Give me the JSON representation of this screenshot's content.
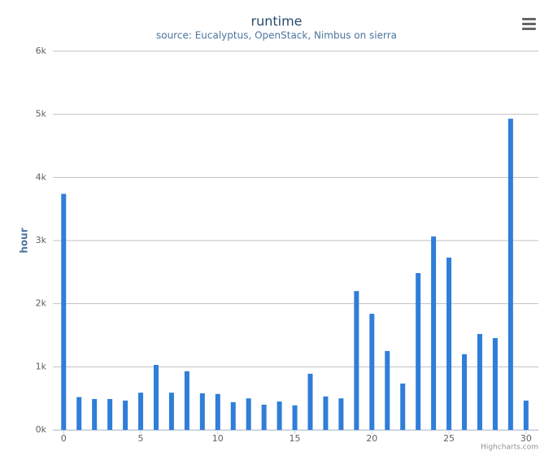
{
  "chart_data": {
    "type": "bar",
    "title": "runtime",
    "subtitle": "source: Eucalyptus, OpenStack, Nimbus on sierra",
    "y_axis_title": "hour",
    "credits": "Highcharts.com",
    "color": "#2f7ed8",
    "grid": true,
    "x": [
      0,
      1,
      2,
      3,
      4,
      5,
      6,
      7,
      8,
      9,
      10,
      11,
      12,
      13,
      14,
      15,
      16,
      17,
      18,
      19,
      20,
      21,
      22,
      23,
      24,
      25,
      26,
      27,
      28,
      29,
      30
    ],
    "values": [
      3740,
      520,
      490,
      490,
      465,
      590,
      1030,
      590,
      930,
      580,
      570,
      440,
      500,
      400,
      450,
      390,
      890,
      530,
      500,
      2200,
      1840,
      1250,
      735,
      2485,
      3065,
      2730,
      1200,
      1520,
      1455,
      4930,
      465
    ],
    "xlim": [
      -0.7,
      30.8
    ],
    "xticks": [
      0,
      5,
      10,
      15,
      20,
      25,
      30
    ],
    "ylim": [
      0,
      6000
    ],
    "yticks": [
      {
        "value": 0,
        "label": "0k"
      },
      {
        "value": 1000,
        "label": "1k"
      },
      {
        "value": 2000,
        "label": "2k"
      },
      {
        "value": 3000,
        "label": "3k"
      },
      {
        "value": 4000,
        "label": "4k"
      },
      {
        "value": 5000,
        "label": "5k"
      },
      {
        "value": 6000,
        "label": "6k"
      }
    ]
  }
}
